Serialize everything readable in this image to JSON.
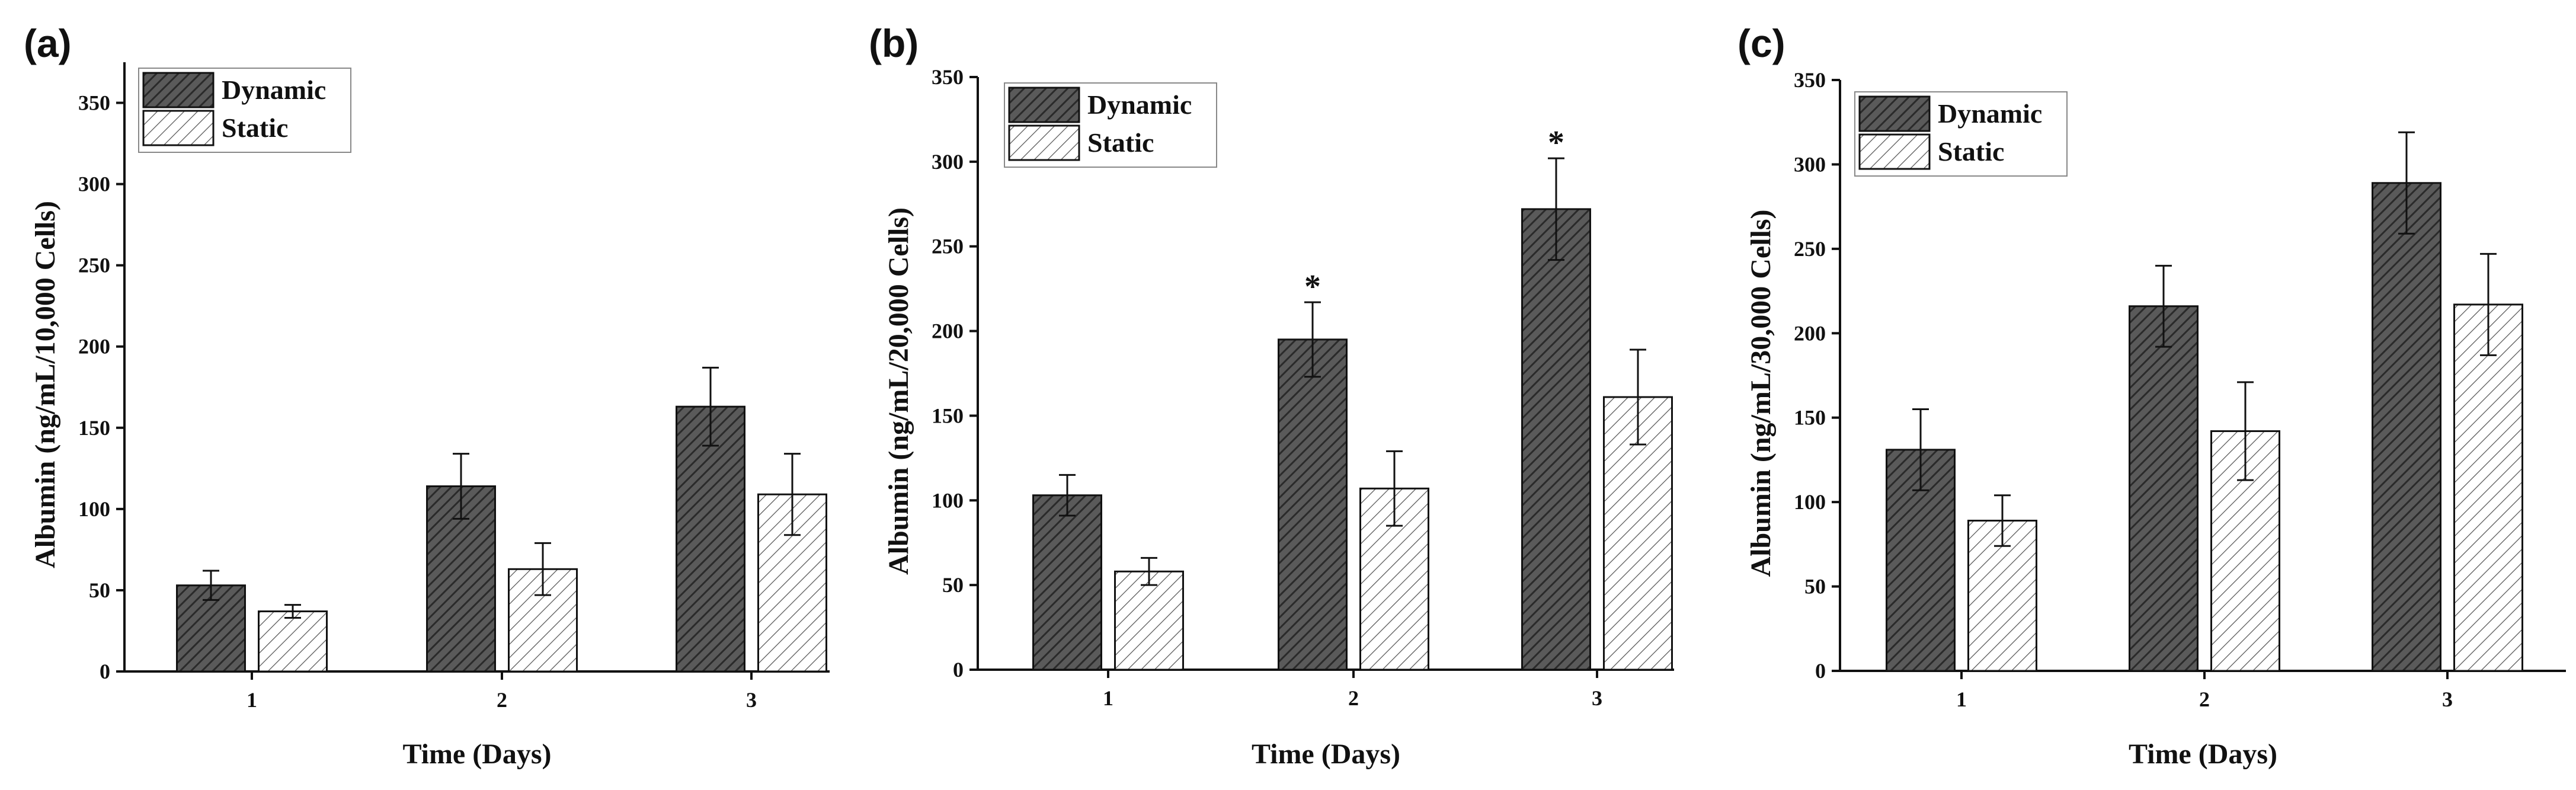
{
  "colors": {
    "dynamic_fill": "#5a5a5a",
    "dynamic_hatch": "#2a2a2a",
    "static_fill": "#ffffff",
    "static_hatch": "#555555",
    "axis": "#111111"
  },
  "chart_data": [
    {
      "type": "bar",
      "panel_label": "(a)",
      "categories": [
        "1",
        "2",
        "3"
      ],
      "series": [
        {
          "name": "Dynamic",
          "values": [
            53,
            114,
            163
          ],
          "errors": [
            9,
            20,
            24
          ]
        },
        {
          "name": "Static",
          "values": [
            37,
            63,
            109
          ],
          "errors": [
            4,
            16,
            25
          ]
        }
      ],
      "significance": [
        "",
        "",
        ""
      ],
      "xlabel": "Time (Days)",
      "ylabel": "Albumin (ng/mL/10,000 Cells)",
      "ylim": [
        0,
        375
      ],
      "yticks": [
        "0",
        "50",
        "100",
        "150",
        "200",
        "250",
        "300",
        "350"
      ],
      "legend": [
        "Dynamic",
        "Static"
      ],
      "legend_position": "top-left"
    },
    {
      "type": "bar",
      "panel_label": "(b)",
      "categories": [
        "1",
        "2",
        "3"
      ],
      "series": [
        {
          "name": "Dynamic",
          "values": [
            103,
            195,
            272
          ],
          "errors": [
            12,
            22,
            30
          ]
        },
        {
          "name": "Static",
          "values": [
            58,
            107,
            161
          ],
          "errors": [
            8,
            22,
            28
          ]
        }
      ],
      "significance": [
        "",
        "*",
        "*"
      ],
      "xlabel": "Time (Days)",
      "ylabel": "Albumin (ng/mL/20,000 Cells)",
      "ylim": [
        0,
        350
      ],
      "yticks": [
        "0",
        "50",
        "100",
        "150",
        "200",
        "250",
        "300",
        "350"
      ],
      "legend": [
        "Dynamic",
        "Static"
      ],
      "legend_position": "top-left"
    },
    {
      "type": "bar",
      "panel_label": "(c)",
      "categories": [
        "1",
        "2",
        "3"
      ],
      "series": [
        {
          "name": "Dynamic",
          "values": [
            131,
            216,
            289
          ],
          "errors": [
            24,
            24,
            30
          ]
        },
        {
          "name": "Static",
          "values": [
            89,
            142,
            217
          ],
          "errors": [
            15,
            29,
            30
          ]
        }
      ],
      "significance": [
        "",
        "",
        ""
      ],
      "xlabel": "Time (Days)",
      "ylabel": "Albumin (ng/mL/30,000 Cells)",
      "ylim": [
        0,
        350
      ],
      "yticks": [
        "0",
        "50",
        "100",
        "150",
        "200",
        "250",
        "300",
        "350"
      ],
      "legend": [
        "Dynamic",
        "Static"
      ],
      "legend_position": "top-left"
    }
  ]
}
